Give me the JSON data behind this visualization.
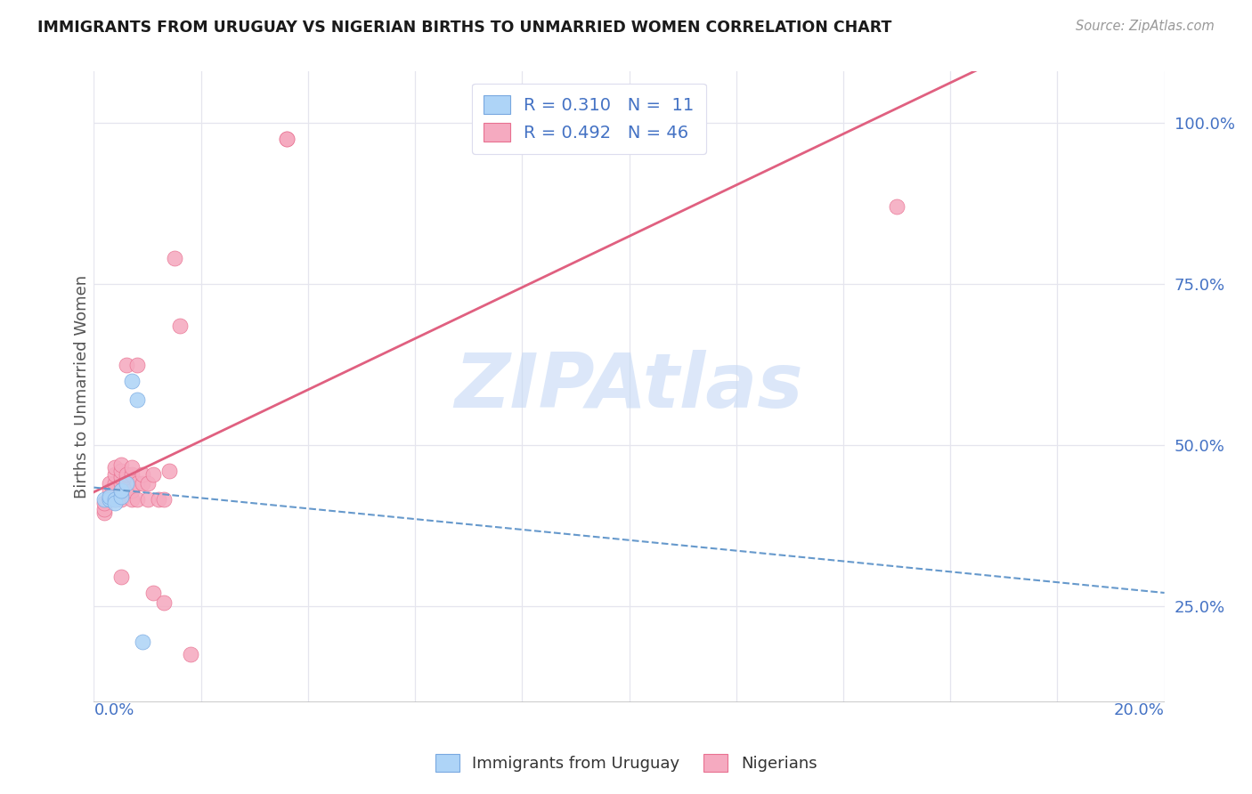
{
  "title": "IMMIGRANTS FROM URUGUAY VS NIGERIAN BIRTHS TO UNMARRIED WOMEN CORRELATION CHART",
  "source": "Source: ZipAtlas.com",
  "ylabel": "Births to Unmarried Women",
  "yticks": [
    0.25,
    0.5,
    0.75,
    1.0
  ],
  "ytick_labels": [
    "25.0%",
    "50.0%",
    "75.0%",
    "100.0%"
  ],
  "xlim": [
    0.0,
    0.2
  ],
  "ylim": [
    0.1,
    1.08
  ],
  "legend_r1": "R = 0.310",
  "legend_n1": "N =  11",
  "legend_r2": "R = 0.492",
  "legend_n2": "N = 46",
  "watermark": "ZIPAtlas",
  "blue_points_x": [
    0.002,
    0.003,
    0.003,
    0.004,
    0.004,
    0.005,
    0.005,
    0.006,
    0.007,
    0.008,
    0.009
  ],
  "blue_points_y": [
    0.415,
    0.415,
    0.42,
    0.415,
    0.41,
    0.42,
    0.43,
    0.44,
    0.6,
    0.57,
    0.195
  ],
  "pink_points_x": [
    0.002,
    0.002,
    0.002,
    0.003,
    0.003,
    0.003,
    0.003,
    0.004,
    0.004,
    0.004,
    0.004,
    0.004,
    0.004,
    0.005,
    0.005,
    0.005,
    0.005,
    0.005,
    0.005,
    0.005,
    0.006,
    0.006,
    0.006,
    0.007,
    0.007,
    0.007,
    0.007,
    0.008,
    0.008,
    0.008,
    0.009,
    0.009,
    0.01,
    0.01,
    0.011,
    0.011,
    0.012,
    0.013,
    0.013,
    0.014,
    0.015,
    0.016,
    0.018,
    0.036,
    0.036,
    0.15
  ],
  "pink_points_y": [
    0.395,
    0.4,
    0.41,
    0.415,
    0.42,
    0.43,
    0.44,
    0.415,
    0.42,
    0.43,
    0.44,
    0.455,
    0.465,
    0.415,
    0.43,
    0.44,
    0.45,
    0.46,
    0.47,
    0.295,
    0.44,
    0.455,
    0.625,
    0.415,
    0.43,
    0.455,
    0.465,
    0.415,
    0.44,
    0.625,
    0.44,
    0.455,
    0.415,
    0.44,
    0.455,
    0.27,
    0.415,
    0.415,
    0.255,
    0.46,
    0.79,
    0.685,
    0.175,
    0.975,
    0.975,
    0.87
  ],
  "blue_color": "#aed4f7",
  "pink_color": "#f5aac0",
  "blue_edge_color": "#78a8e0",
  "pink_edge_color": "#e87090",
  "blue_line_color": "#6699cc",
  "pink_line_color": "#e06080",
  "background_color": "#ffffff",
  "grid_color": "#e5e5ee",
  "title_color": "#1a1a1a",
  "axis_label_color": "#4472c4",
  "watermark_color": "#c5d8f5",
  "source_color": "#999999"
}
